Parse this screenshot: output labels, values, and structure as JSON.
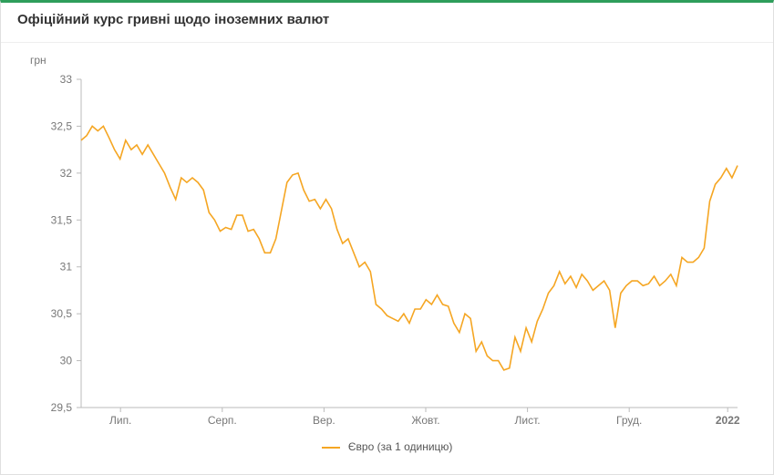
{
  "title": "Офіційний курс гривні щодо іноземних валют",
  "y_axis_title": "грн",
  "chart": {
    "type": "line",
    "background_color": "#ffffff",
    "axis_color": "#bbbbbb",
    "tick_label_color": "#777777",
    "tick_fontsize": 12,
    "title_fontsize": 15,
    "title_color": "#333333",
    "accent_border_color": "#2e9e5b",
    "ylim": [
      29.5,
      33
    ],
    "ytick_step": 0.5,
    "yticks": [
      29.5,
      30,
      30.5,
      31,
      31.5,
      32,
      32.5,
      33
    ],
    "x_categories": [
      "Лип.",
      "Серп.",
      "Вер.",
      "Жовт.",
      "Лист.",
      "Груд.",
      "2022"
    ],
    "series": [
      {
        "name": "euro",
        "label": "Євро (за 1 одиницю)",
        "color": "#f5a623",
        "line_width": 1.6,
        "values": [
          32.35,
          32.4,
          32.5,
          32.45,
          32.5,
          32.38,
          32.25,
          32.15,
          32.35,
          32.25,
          32.3,
          32.2,
          32.3,
          32.2,
          32.1,
          32.0,
          31.85,
          31.72,
          31.95,
          31.9,
          31.95,
          31.9,
          31.82,
          31.58,
          31.5,
          31.38,
          31.42,
          31.4,
          31.55,
          31.55,
          31.38,
          31.4,
          31.3,
          31.15,
          31.15,
          31.3,
          31.6,
          31.9,
          31.98,
          32.0,
          31.82,
          31.7,
          31.72,
          31.62,
          31.72,
          31.62,
          31.4,
          31.25,
          31.3,
          31.15,
          31.0,
          31.05,
          30.95,
          30.6,
          30.55,
          30.48,
          30.45,
          30.42,
          30.5,
          30.4,
          30.55,
          30.55,
          30.65,
          30.6,
          30.7,
          30.6,
          30.58,
          30.4,
          30.3,
          30.5,
          30.45,
          30.1,
          30.2,
          30.05,
          30.0,
          30.0,
          29.9,
          29.92,
          30.25,
          30.1,
          30.35,
          30.2,
          30.42,
          30.55,
          30.72,
          30.8,
          30.95,
          30.82,
          30.9,
          30.78,
          30.92,
          30.85,
          30.75,
          30.8,
          30.85,
          30.75,
          30.35,
          30.72,
          30.8,
          30.85,
          30.85,
          30.8,
          30.82,
          30.9,
          30.8,
          30.85,
          30.92,
          30.8,
          31.1,
          31.05,
          31.05,
          31.1,
          31.2,
          31.7,
          31.88,
          31.95,
          32.05,
          31.95,
          32.08
        ]
      }
    ]
  },
  "legend": {
    "items": [
      {
        "label": "Євро (за 1 одиницю)",
        "color": "#f5a623"
      }
    ]
  }
}
